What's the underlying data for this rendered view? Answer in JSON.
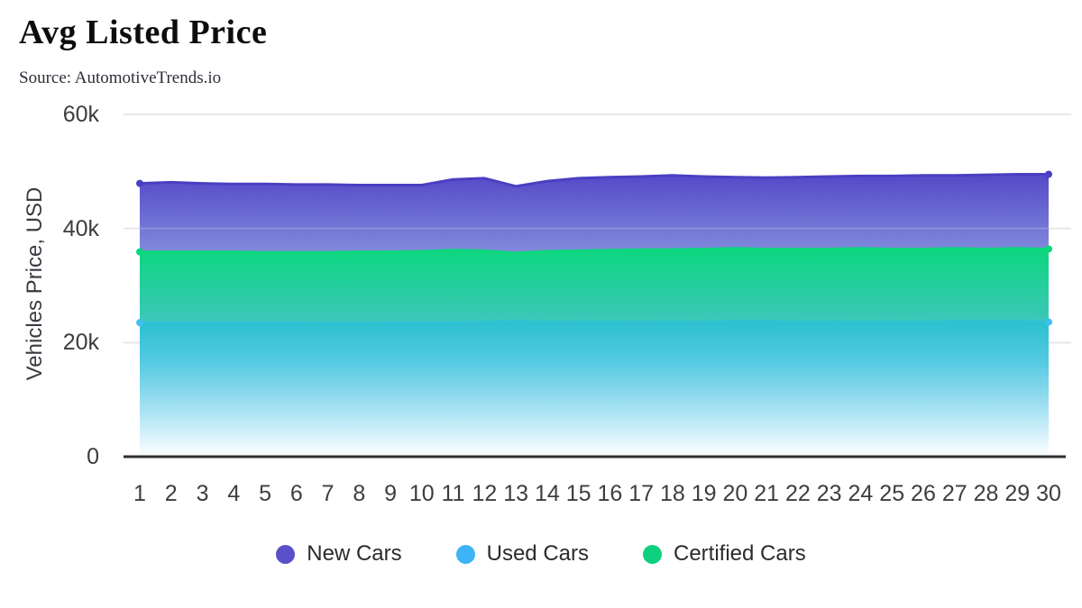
{
  "header": {
    "title": "Avg Listed Price",
    "source": "Source: AutomotiveTrends.io"
  },
  "chart_data": {
    "type": "area",
    "title": "Avg Listed Price",
    "subtitle": "Source: AutomotiveTrends.io",
    "xlabel": "",
    "ylabel": "Vehicles Price, USD",
    "ylim": [
      0,
      60000
    ],
    "grid": "horizontal-light",
    "legend_position": "bottom",
    "x": [
      1,
      2,
      3,
      4,
      5,
      6,
      7,
      8,
      9,
      10,
      11,
      12,
      13,
      14,
      15,
      16,
      17,
      18,
      19,
      20,
      21,
      22,
      23,
      24,
      25,
      26,
      27,
      28,
      29,
      30
    ],
    "yticks": [
      {
        "value": 0,
        "label": "0"
      },
      {
        "value": 20000,
        "label": "20k"
      },
      {
        "value": 40000,
        "label": "40k"
      },
      {
        "value": 60000,
        "label": "60k"
      }
    ],
    "series": [
      {
        "name": "New Cars",
        "color": "#5a50c9",
        "line_color": "#4a3fc2",
        "marker_color": "#4a3fc2",
        "gradient": [
          [
            0,
            "#5549c8"
          ],
          [
            0.27,
            "#8089db"
          ],
          [
            0.6,
            "#bcc4ef"
          ],
          [
            1,
            "#eef0fb"
          ]
        ],
        "values": [
          47900,
          48100,
          47900,
          47800,
          47800,
          47700,
          47700,
          47600,
          47600,
          47600,
          48600,
          48800,
          47400,
          48300,
          48800,
          49000,
          49100,
          49300,
          49100,
          49000,
          48900,
          49000,
          49100,
          49200,
          49200,
          49300,
          49300,
          49400,
          49500,
          49500
        ]
      },
      {
        "name": "Used Cars",
        "color": "#3cb4f5",
        "line_color": "#2fc2d5",
        "marker_color": "#41bff2",
        "gradient": [
          [
            0,
            "#2ac0cf"
          ],
          [
            0.3,
            "#55cae1"
          ],
          [
            0.62,
            "#9fdff1"
          ],
          [
            0.85,
            "#d9f2fb"
          ],
          [
            1,
            "#ffffff"
          ]
        ],
        "values": [
          23500,
          23500,
          23500,
          23500,
          23500,
          23500,
          23400,
          23400,
          23500,
          23500,
          23500,
          23600,
          23700,
          23600,
          23600,
          23600,
          23600,
          23600,
          23600,
          23700,
          23700,
          23600,
          23600,
          23600,
          23600,
          23600,
          23700,
          23700,
          23700,
          23600
        ]
      },
      {
        "name": "Certified Cars",
        "color": "#0fd07e",
        "line_color": "#0dd67e",
        "marker_color": "#0dd67e",
        "gradient": [
          [
            0,
            "#0cd67e"
          ],
          [
            0.35,
            "#3cc7ba"
          ],
          [
            0.7,
            "#9fe0dd"
          ],
          [
            1,
            "#d9f4f0"
          ]
        ],
        "values": [
          35900,
          35900,
          35900,
          35900,
          35800,
          35800,
          35800,
          35900,
          35900,
          36000,
          36200,
          36100,
          35700,
          36000,
          36100,
          36200,
          36300,
          36300,
          36400,
          36500,
          36400,
          36400,
          36400,
          36500,
          36400,
          36400,
          36500,
          36400,
          36500,
          36400
        ]
      }
    ]
  },
  "legend": {
    "items": [
      {
        "label": "New Cars",
        "color": "#5a50c9"
      },
      {
        "label": "Used Cars",
        "color": "#3cb4f5"
      },
      {
        "label": "Certified Cars",
        "color": "#0fd07e"
      }
    ]
  }
}
